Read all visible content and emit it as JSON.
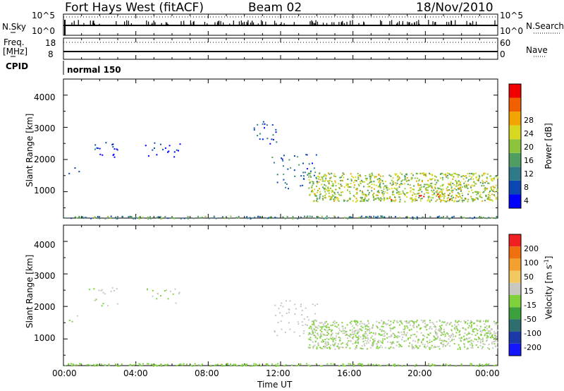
{
  "header": {
    "radar": "Fort Hays West (fitACF)",
    "beam": "Beam 02",
    "date": "18/Nov/2010"
  },
  "nsky": {
    "label": "N.Sky",
    "ticks_left": [
      "10^5",
      "10^0"
    ],
    "ticks_right": [
      "10^5",
      "10^0"
    ],
    "right_label": "N.Search"
  },
  "freq": {
    "label_line1": "Freq.",
    "label_line2": "[MHz]",
    "ticks_left": [
      "18",
      "8"
    ],
    "ticks_right": [
      "60",
      "0"
    ],
    "right_label": "Nave"
  },
  "cpid": {
    "label": "CPID",
    "mode": "normal 150"
  },
  "colors": {
    "power": [
      "#0000ff",
      "#0a47b0",
      "#2e7a86",
      "#4e9e62",
      "#8cc43c",
      "#d8d820",
      "#f2a400",
      "#f06000",
      "#f00000"
    ],
    "velocity": [
      "#1515ff",
      "#1b3aa8",
      "#2e6e6e",
      "#3ca03c",
      "#7fd23c",
      "#c8c8c0",
      "#f2c860",
      "#f2a030",
      "#f07010",
      "#f02020"
    ]
  },
  "chart_data": [
    {
      "type": "heatmap",
      "title": "Power",
      "xlabel": "",
      "ylabel": "Slant Range [km]",
      "xlim": [
        "00:00",
        "24:00"
      ],
      "ylim": [
        180,
        4500
      ],
      "y_ticks": [
        "1000",
        "2000",
        "3000",
        "4000"
      ],
      "colorbar": {
        "label": "Power [dB]",
        "ticks": [
          "28",
          "24",
          "20",
          "16",
          "12",
          "8",
          "4"
        ],
        "range": [
          0,
          30
        ]
      },
      "scatter_regions": [
        {
          "t_start": "00:10",
          "t_end": "00:50",
          "range_km": [
            1550,
            1850
          ],
          "power_db": 3
        },
        {
          "t_start": "01:20",
          "t_end": "03:00",
          "range_km": [
            2000,
            2600
          ],
          "power_db": 3
        },
        {
          "t_start": "04:30",
          "t_end": "06:30",
          "range_km": [
            2100,
            2600
          ],
          "power_db": 3
        },
        {
          "t_start": "10:30",
          "t_end": "12:00",
          "range_km": [
            2400,
            3200
          ],
          "power_db": 4
        },
        {
          "t_start": "11:30",
          "t_end": "14:00",
          "range_km": [
            1100,
            2200
          ],
          "power_db": 7
        },
        {
          "t_start": "13:30",
          "t_end": "23:59",
          "range_km": [
            700,
            1600
          ],
          "power_db": 16
        },
        {
          "t_start": "18:00",
          "t_end": "21:30",
          "range_km": [
            750,
            950
          ],
          "power_db": 27
        },
        {
          "t_start": "00:00",
          "t_end": "23:59",
          "range_km": [
            180,
            260
          ],
          "power_db": 10
        }
      ]
    },
    {
      "type": "heatmap",
      "title": "Velocity",
      "xlabel": "Time UT",
      "ylabel": "Slant Range [km]",
      "xlim": [
        "00:00",
        "24:00"
      ],
      "ylim": [
        180,
        4500
      ],
      "x_ticks": [
        "00:00",
        "04:00",
        "08:00",
        "12:00",
        "16:00",
        "20:00",
        "00:00"
      ],
      "y_ticks": [
        "1000",
        "2000",
        "3000",
        "4000"
      ],
      "colorbar": {
        "label": "Velocity [m s-1]",
        "ticks": [
          "200",
          "100",
          "50",
          "15",
          "-15",
          "-50",
          "-100",
          "-200"
        ],
        "range": [
          -250,
          250
        ]
      },
      "scatter_regions": [
        {
          "t_start": "00:10",
          "t_end": "00:50",
          "range_km": [
            1550,
            1850
          ],
          "velocity": 0
        },
        {
          "t_start": "01:20",
          "t_end": "03:00",
          "range_km": [
            2000,
            2600
          ],
          "velocity": 0
        },
        {
          "t_start": "04:30",
          "t_end": "06:30",
          "range_km": [
            2100,
            2600
          ],
          "velocity": 0
        },
        {
          "t_start": "11:30",
          "t_end": "14:00",
          "range_km": [
            1100,
            2200
          ],
          "velocity": 30
        },
        {
          "t_start": "13:30",
          "t_end": "23:59",
          "range_km": [
            700,
            1600
          ],
          "velocity": 0
        },
        {
          "t_start": "00:00",
          "t_end": "23:59",
          "range_km": [
            180,
            260
          ],
          "velocity": -30
        }
      ]
    }
  ],
  "colorbar_labels": {
    "power_main": "Power",
    "power_unit": "[dB]",
    "velocity_main": "Velocity",
    "velocity_unit_pre": "[m s",
    "velocity_unit_sup": "-1",
    "velocity_unit_post": "]"
  }
}
